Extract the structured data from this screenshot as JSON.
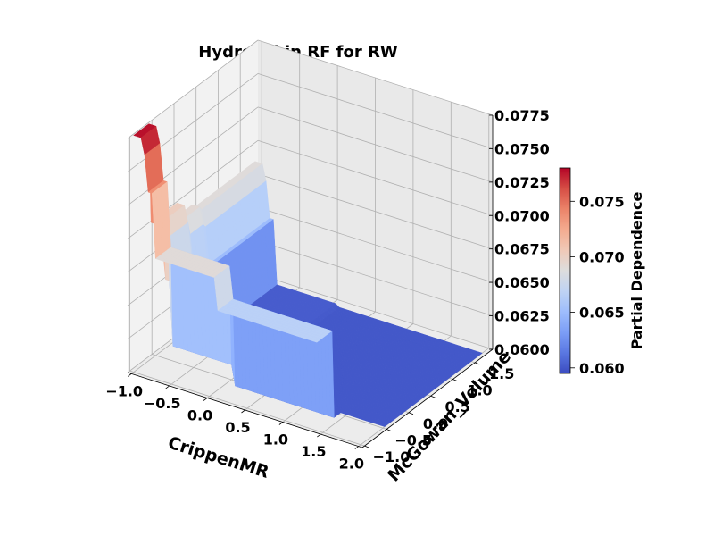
{
  "chart_data": {
    "type": "surface3d",
    "title": "Hydroxyl in RF for RW",
    "xlabel": "CrippenMR",
    "ylabel": "McGowan_Volume",
    "zlabel": "",
    "x_ticks": [
      "−1.0",
      "−0.5",
      "0.0",
      "0.5",
      "1.0",
      "1.5",
      "2.0"
    ],
    "y_ticks": [
      "−1.0",
      "−0.5",
      "0.0",
      "0.5",
      "1.0",
      "1.5"
    ],
    "z_ticks": [
      "0.0600",
      "0.0625",
      "0.0650",
      "0.0675",
      "0.0700",
      "0.0725",
      "0.0750",
      "0.0775"
    ],
    "colormap": "coolwarm",
    "colorbar": {
      "label": "Partial Dependence",
      "ticks": [
        "0.060",
        "0.065",
        "0.070",
        "0.075"
      ],
      "range": [
        0.0595,
        0.078
      ]
    },
    "surface_profile": {
      "crippenmr_breaks": [
        -1.0,
        -0.9,
        -0.82,
        -0.72,
        0.1
      ],
      "crippenmr_levels": [
        0.0777,
        0.0765,
        0.0738,
        0.069,
        0.0666
      ],
      "crippenmr_max": 2.0,
      "mcgowan_breaks": [
        -0.7,
        -0.62,
        0.0,
        0.35,
        1.75
      ],
      "mcgowan_drop_levels": [
        0.0,
        0.0075,
        0.0085,
        0.0088,
        0.0088
      ]
    }
  }
}
